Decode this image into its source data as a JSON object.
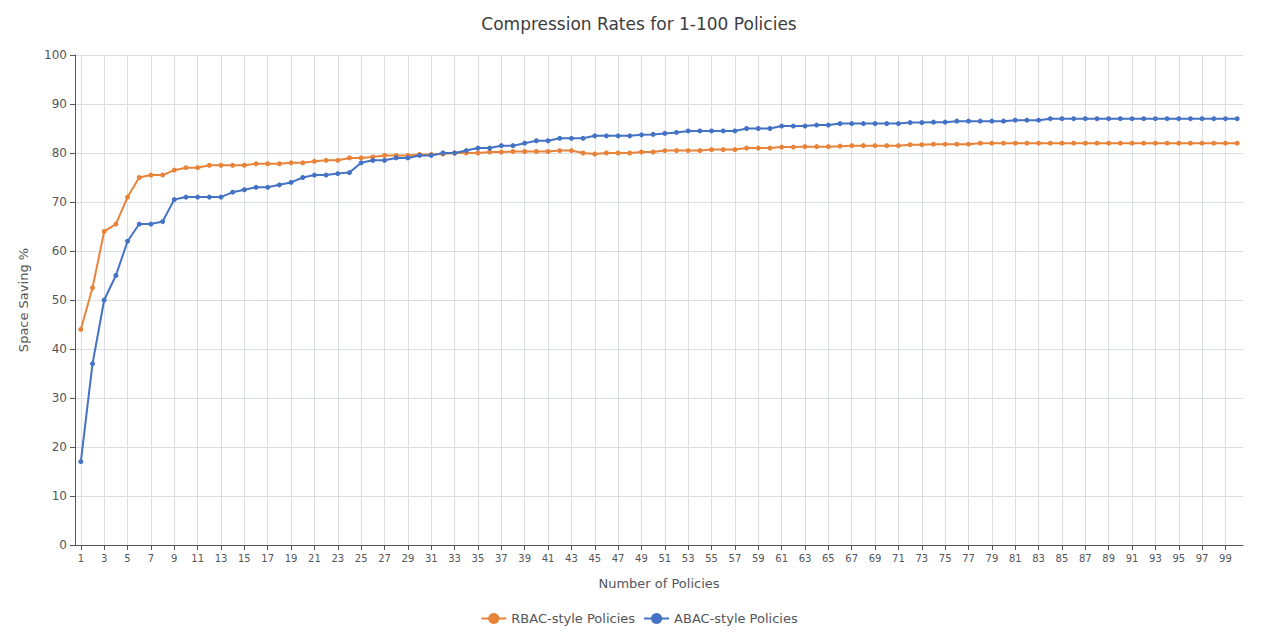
{
  "chart_data": {
    "type": "line",
    "title": "Compression Rates for 1-100 Policies",
    "xlabel": "Number of Policies",
    "ylabel": "Space Saving %",
    "x": [
      1,
      2,
      3,
      4,
      5,
      6,
      7,
      8,
      9,
      10,
      11,
      12,
      13,
      14,
      15,
      16,
      17,
      18,
      19,
      20,
      21,
      22,
      23,
      24,
      25,
      26,
      27,
      28,
      29,
      30,
      31,
      32,
      33,
      34,
      35,
      36,
      37,
      38,
      39,
      40,
      41,
      42,
      43,
      44,
      45,
      46,
      47,
      48,
      49,
      50,
      51,
      52,
      53,
      54,
      55,
      56,
      57,
      58,
      59,
      60,
      61,
      62,
      63,
      64,
      65,
      66,
      67,
      68,
      69,
      70,
      71,
      72,
      73,
      74,
      75,
      76,
      77,
      78,
      79,
      80,
      81,
      82,
      83,
      84,
      85,
      86,
      87,
      88,
      89,
      90,
      91,
      92,
      93,
      94,
      95,
      96,
      97,
      98,
      99,
      100
    ],
    "xlim": [
      0.5,
      100.5
    ],
    "xticks": [
      1,
      3,
      5,
      7,
      9,
      11,
      13,
      15,
      17,
      19,
      21,
      23,
      25,
      27,
      29,
      31,
      33,
      35,
      37,
      39,
      41,
      43,
      45,
      47,
      49,
      51,
      53,
      55,
      57,
      59,
      61,
      63,
      65,
      67,
      69,
      71,
      73,
      75,
      77,
      79,
      81,
      83,
      85,
      87,
      89,
      91,
      93,
      95,
      97,
      99
    ],
    "ylim": [
      0,
      100
    ],
    "yticks": [
      0,
      10,
      20,
      30,
      40,
      50,
      60,
      70,
      80,
      90,
      100
    ],
    "grid": true,
    "legend": "bottom",
    "marker": "circle",
    "series": [
      {
        "name": "RBAC-style Policies",
        "color": "#E8833A",
        "values": [
          44.0,
          52.5,
          64.0,
          65.5,
          71.0,
          75.0,
          75.5,
          75.5,
          76.5,
          77.0,
          77.0,
          77.5,
          77.5,
          77.5,
          77.5,
          77.8,
          77.8,
          77.8,
          78.0,
          78.0,
          78.3,
          78.5,
          78.5,
          79.0,
          79.0,
          79.2,
          79.5,
          79.5,
          79.5,
          79.7,
          79.7,
          79.8,
          80.0,
          80.0,
          80.0,
          80.2,
          80.2,
          80.3,
          80.3,
          80.3,
          80.3,
          80.5,
          80.5,
          80.0,
          79.8,
          80.0,
          80.0,
          80.0,
          80.2,
          80.2,
          80.5,
          80.5,
          80.5,
          80.5,
          80.7,
          80.7,
          80.7,
          81.0,
          81.0,
          81.0,
          81.2,
          81.2,
          81.3,
          81.3,
          81.3,
          81.4,
          81.5,
          81.5,
          81.5,
          81.5,
          81.5,
          81.7,
          81.7,
          81.8,
          81.8,
          81.8,
          81.8,
          82.0,
          82.0,
          82.0,
          82.0,
          82.0,
          82.0,
          82.0,
          82.0,
          82.0,
          82.0,
          82.0,
          82.0,
          82.0,
          82.0,
          82.0,
          82.0,
          82.0,
          82.0,
          82.0,
          82.0,
          82.0,
          82.0,
          82.0
        ]
      },
      {
        "name": "ABAC-style Policies",
        "color": "#4472C4",
        "values": [
          17.0,
          37.0,
          50.0,
          55.0,
          62.0,
          65.5,
          65.5,
          66.0,
          70.5,
          71.0,
          71.0,
          71.0,
          71.0,
          72.0,
          72.5,
          73.0,
          73.0,
          73.5,
          74.0,
          75.0,
          75.5,
          75.5,
          75.8,
          76.0,
          78.0,
          78.5,
          78.5,
          79.0,
          79.0,
          79.5,
          79.5,
          80.0,
          80.0,
          80.5,
          81.0,
          81.0,
          81.5,
          81.5,
          82.0,
          82.5,
          82.5,
          83.0,
          83.0,
          83.0,
          83.5,
          83.5,
          83.5,
          83.5,
          83.7,
          83.8,
          84.0,
          84.2,
          84.5,
          84.5,
          84.5,
          84.5,
          84.5,
          85.0,
          85.0,
          85.0,
          85.5,
          85.5,
          85.5,
          85.7,
          85.7,
          86.0,
          86.0,
          86.0,
          86.0,
          86.0,
          86.0,
          86.2,
          86.2,
          86.3,
          86.3,
          86.5,
          86.5,
          86.5,
          86.5,
          86.5,
          86.7,
          86.7,
          86.7,
          87.0,
          87.0,
          87.0,
          87.0,
          87.0,
          87.0,
          87.0,
          87.0,
          87.0,
          87.0,
          87.0,
          87.0,
          87.0,
          87.0,
          87.0,
          87.0,
          87.0
        ]
      }
    ]
  }
}
